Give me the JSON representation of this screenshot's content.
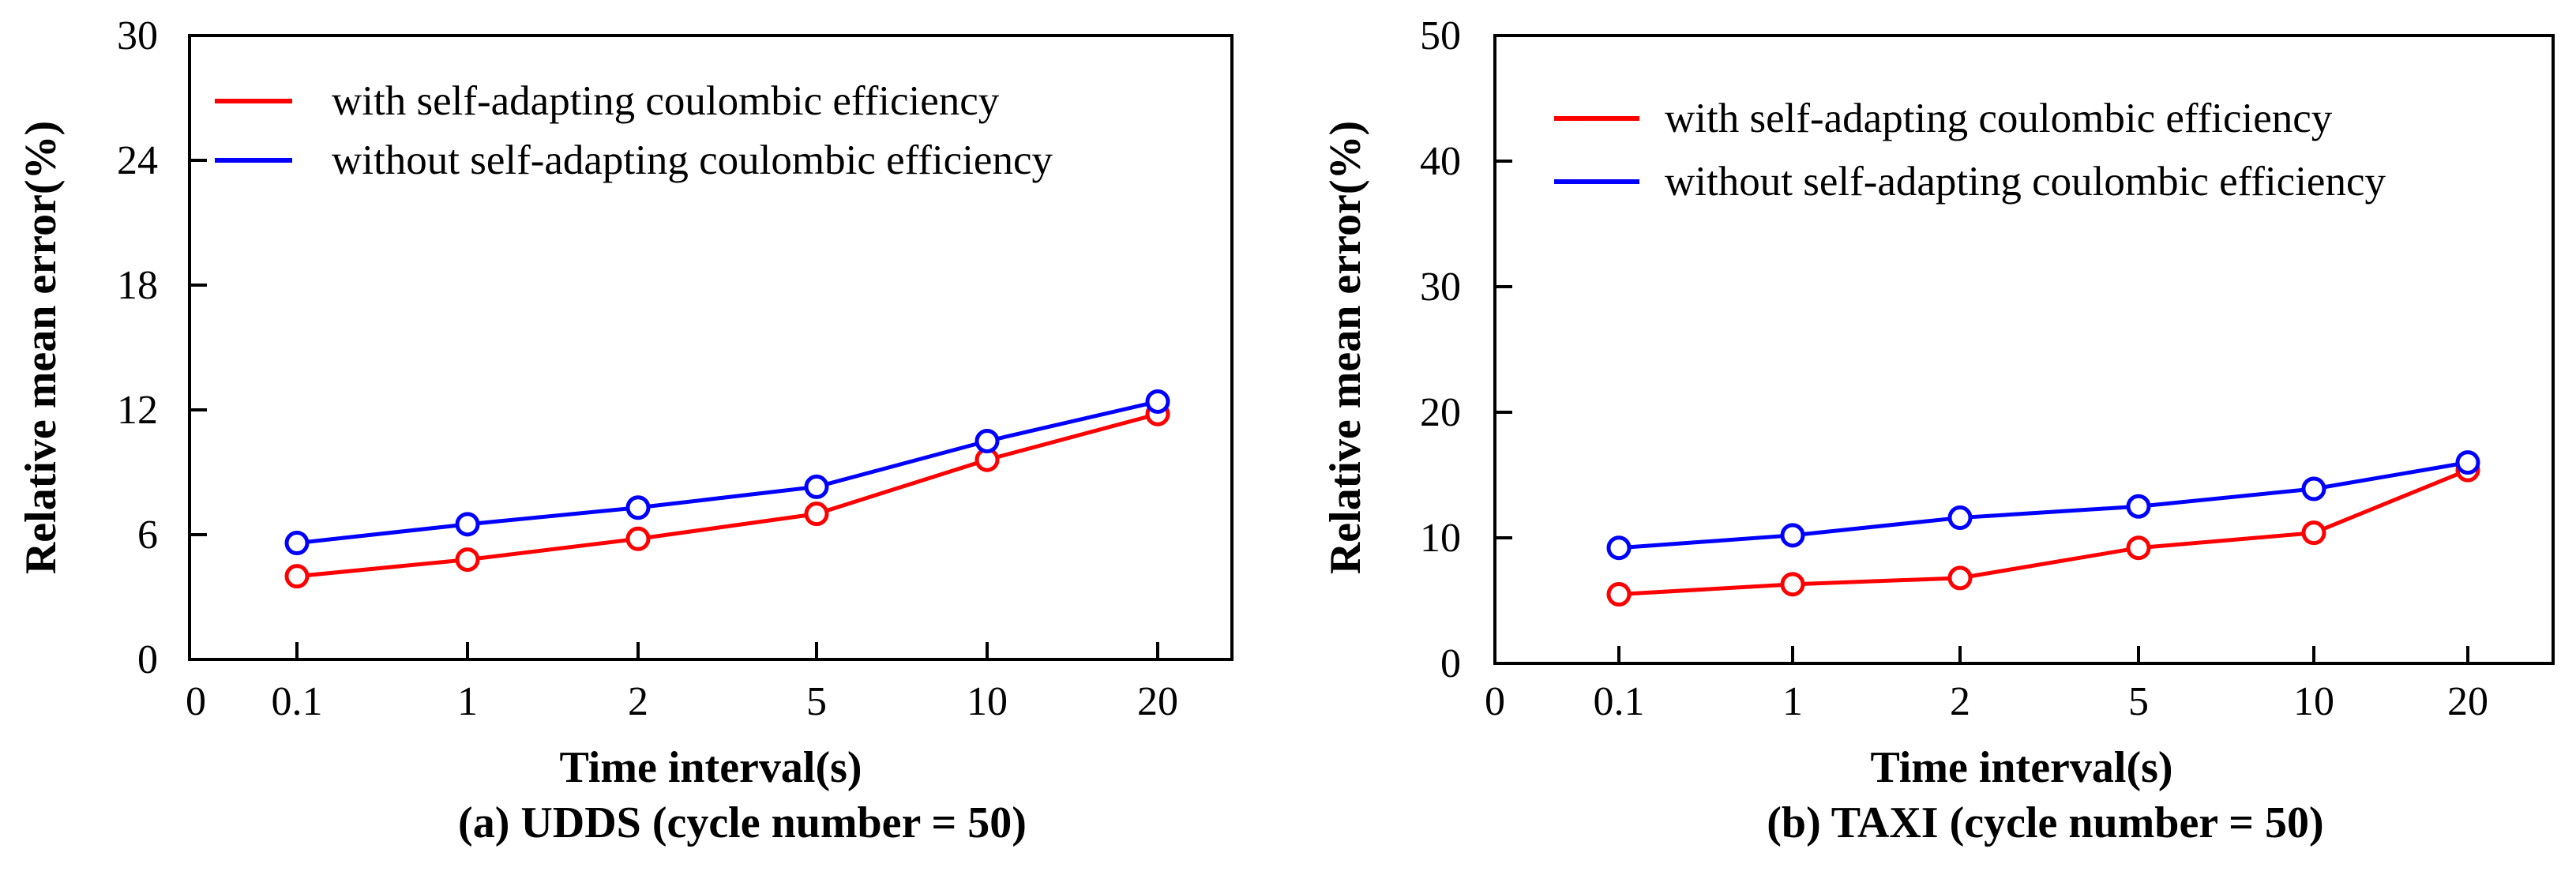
{
  "chart_data": [
    {
      "type": "line",
      "caption": "(a) UDDS (cycle number = 50)",
      "xlabel": "Time interval(s)",
      "ylabel": "Relative mean error(%)",
      "x_origin_tick": "0",
      "categories": [
        "0.1",
        "1",
        "2",
        "5",
        "10",
        "20"
      ],
      "yticks": [
        0,
        6,
        12,
        18,
        24,
        30
      ],
      "ylim": [
        0,
        30
      ],
      "legend_position": "top-left",
      "series": [
        {
          "name": "with self-adapting coulombic efficiency",
          "color": "#ff0000",
          "values": [
            4.0,
            4.8,
            5.8,
            7.0,
            9.6,
            11.8
          ]
        },
        {
          "name": "without self-adapting coulombic efficiency",
          "color": "#0000ff",
          "values": [
            5.6,
            6.5,
            7.3,
            8.3,
            10.5,
            12.4
          ]
        }
      ]
    },
    {
      "type": "line",
      "caption": "(b) TAXI (cycle number = 50)",
      "xlabel": "Time interval(s)",
      "ylabel": "Relative mean error(%)",
      "x_origin_tick": "0",
      "categories": [
        "0.1",
        "1",
        "2",
        "5",
        "10",
        "20"
      ],
      "yticks": [
        0,
        10,
        20,
        30,
        40,
        50
      ],
      "ylim": [
        0,
        50
      ],
      "legend_position": "top-left",
      "series": [
        {
          "name": "with self-adapting coulombic efficiency",
          "color": "#ff0000",
          "values": [
            5.5,
            6.3,
            6.8,
            9.2,
            10.4,
            15.4
          ]
        },
        {
          "name": "without self-adapting coulombic efficiency",
          "color": "#0000ff",
          "values": [
            9.2,
            10.2,
            11.6,
            12.5,
            13.9,
            16.0
          ]
        }
      ]
    }
  ]
}
